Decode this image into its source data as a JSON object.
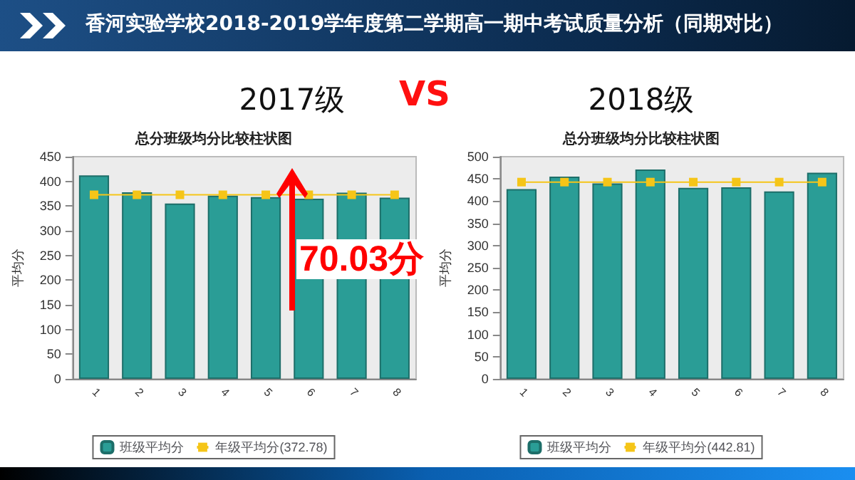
{
  "chart_data": [
    {
      "type": "bar",
      "title": "总分班级均分比较柱状图",
      "subtitle": "2017级",
      "ylabel": "平均分",
      "annotations": [
        "香河实验学校2018-2019学年度第二学期高一期中考试质量分析（同期对比）",
        "VS",
        "70.03分"
      ],
      "categories": [
        "1",
        "2",
        "3",
        "4",
        "5",
        "6",
        "7",
        "8"
      ],
      "series": [
        {
          "name": "班级平均分",
          "color": "#2a9d96",
          "values": [
            412,
            378,
            355,
            371,
            368,
            365,
            377,
            367
          ]
        },
        {
          "name": "年级平均分(372.78)",
          "type": "line",
          "color": "#f5c518",
          "values": [
            372.78,
            372.78,
            372.78,
            372.78,
            372.78,
            372.78,
            372.78,
            372.78
          ]
        }
      ],
      "ylim": [
        0,
        450
      ],
      "yticks": [
        0,
        50,
        100,
        150,
        200,
        250,
        300,
        350,
        400,
        450
      ],
      "grid": false,
      "legend": "bottom",
      "marker": "square"
    },
    {
      "type": "bar",
      "title": "总分班级均分比较柱状图",
      "subtitle": "2018级",
      "ylabel": "平均分",
      "categories": [
        "1",
        "2",
        "3",
        "4",
        "5",
        "6",
        "7",
        "8"
      ],
      "series": [
        {
          "name": "班级平均分",
          "color": "#2a9d96",
          "values": [
            427,
            455,
            440,
            471,
            430,
            431,
            422,
            464
          ]
        },
        {
          "name": "年级平均分(442.81)",
          "type": "line",
          "color": "#f5c518",
          "values": [
            442.81,
            442.81,
            442.81,
            442.81,
            442.81,
            442.81,
            442.81,
            442.81
          ]
        }
      ],
      "ylim": [
        0,
        500
      ],
      "yticks": [
        0,
        50,
        100,
        150,
        200,
        250,
        300,
        350,
        400,
        450,
        500
      ],
      "grid": false,
      "legend": "bottom",
      "marker": "square"
    }
  ]
}
